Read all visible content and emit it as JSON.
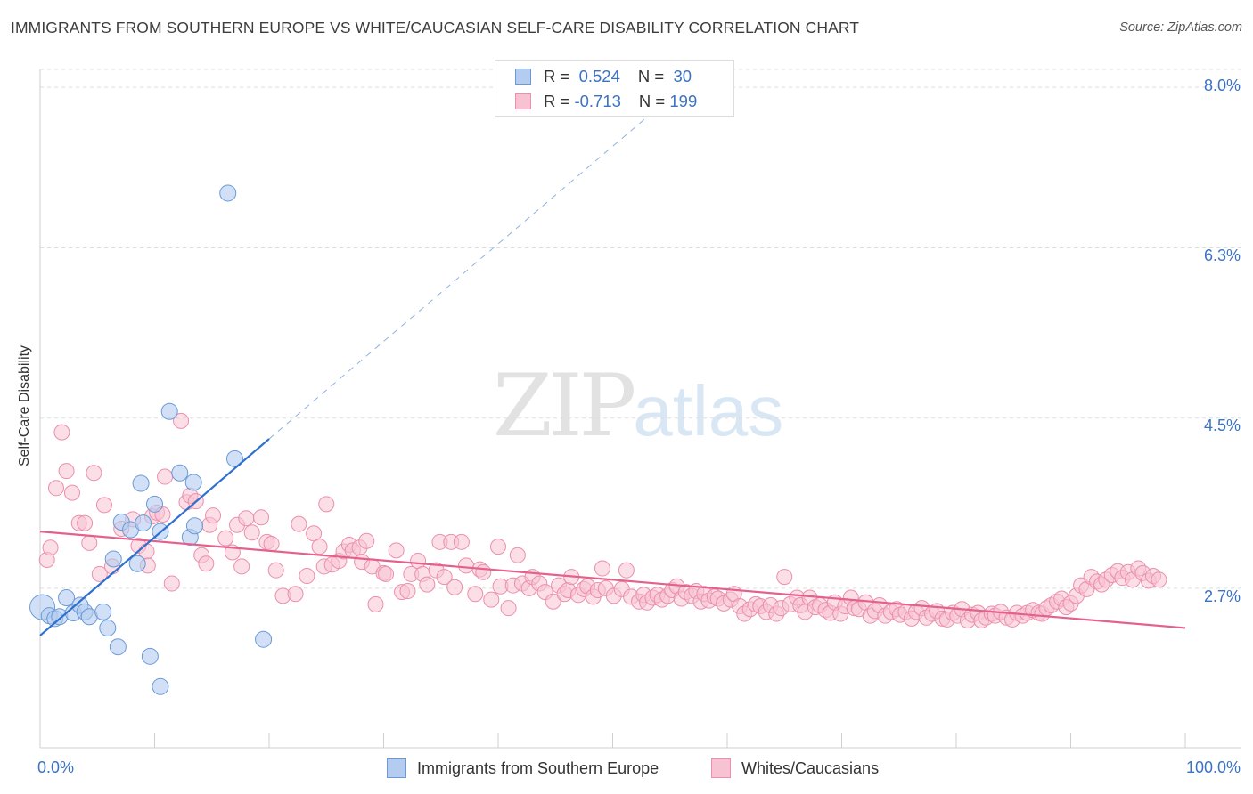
{
  "header": {
    "title": "IMMIGRANTS FROM SOUTHERN EUROPE VS WHITE/CAUCASIAN SELF-CARE DISABILITY CORRELATION CHART",
    "source": "Source: ZipAtlas.com"
  },
  "watermark": {
    "zip": "ZIP",
    "atlas": "atlas"
  },
  "legend_top": {
    "rows": [
      {
        "r_label": "R =",
        "r_value": "0.524",
        "n_label": "N =",
        "n_value": "30"
      },
      {
        "r_label": "R =",
        "r_value": "-0.713",
        "n_label": "N =",
        "n_value": "199"
      }
    ]
  },
  "colors": {
    "blue_fill": "#b3ccf0",
    "blue_stroke": "#6a9ad6",
    "blue_line": "#2f6fce",
    "pink_fill": "#f7c2d2",
    "pink_stroke": "#eb8fac",
    "pink_line": "#e4608d",
    "axis_text": "#3a72c4",
    "grid": "#dddddd"
  },
  "chart_data": {
    "type": "scatter",
    "title": "IMMIGRANTS FROM SOUTHERN EUROPE VS WHITE/CAUCASIAN SELF-CARE DISABILITY CORRELATION CHART",
    "xlabel": "",
    "ylabel": "Self-Care Disability",
    "xlim": [
      0,
      100
    ],
    "ylim": [
      1.35,
      8.3
    ],
    "x_tick_labels": [
      "0.0%",
      "100.0%"
    ],
    "y_ticks": [
      2.7,
      4.5,
      6.3,
      8.0
    ],
    "y_tick_labels": [
      "2.7%",
      "4.5%",
      "6.3%",
      "8.0%"
    ],
    "grid": true,
    "legend_position": "bottom",
    "series": [
      {
        "name": "Immigrants from Southern Europe",
        "r": 0.524,
        "n": 30,
        "trend": {
          "x0": 0,
          "y0": 2.2,
          "x1": 20,
          "y1": 4.28,
          "dash_to_x": 58,
          "dash_to_y": 8.2
        },
        "points": [
          [
            0.2,
            2.5,
            14
          ],
          [
            0.8,
            2.41,
            9
          ],
          [
            1.3,
            2.38,
            9
          ],
          [
            1.7,
            2.4,
            9
          ],
          [
            2.3,
            2.6,
            9
          ],
          [
            2.9,
            2.44,
            9
          ],
          [
            3.5,
            2.52,
            9
          ],
          [
            3.9,
            2.45,
            9
          ],
          [
            4.3,
            2.4,
            9
          ],
          [
            5.5,
            2.45,
            9
          ],
          [
            5.9,
            2.28,
            9
          ],
          [
            6.4,
            3.01,
            9
          ],
          [
            7.1,
            3.4,
            9
          ],
          [
            7.9,
            3.32,
            9
          ],
          [
            6.8,
            2.08,
            9
          ],
          [
            8.5,
            2.96,
            9
          ],
          [
            8.8,
            3.81,
            9
          ],
          [
            9.0,
            3.39,
            9
          ],
          [
            9.6,
            1.98,
            9
          ],
          [
            10.0,
            3.59,
            9
          ],
          [
            10.5,
            3.3,
            9
          ],
          [
            10.5,
            1.66,
            9
          ],
          [
            11.3,
            4.57,
            9
          ],
          [
            12.2,
            3.92,
            9
          ],
          [
            13.1,
            3.24,
            9
          ],
          [
            13.4,
            3.82,
            9
          ],
          [
            13.5,
            3.36,
            9
          ],
          [
            16.4,
            6.88,
            9
          ],
          [
            17.0,
            4.07,
            9
          ],
          [
            19.5,
            2.16,
            9
          ]
        ]
      },
      {
        "name": "Whites/Caucasians",
        "r": -0.713,
        "n": 199,
        "trend": {
          "x0": 0,
          "y0": 3.3,
          "x1": 100,
          "y1": 2.28
        },
        "points": [
          [
            0.6,
            3.0
          ],
          [
            0.9,
            3.13
          ],
          [
            1.4,
            3.76
          ],
          [
            1.9,
            4.35
          ],
          [
            2.3,
            3.94
          ],
          [
            2.8,
            3.71
          ],
          [
            3.4,
            3.39
          ],
          [
            3.9,
            3.39
          ],
          [
            4.3,
            3.18
          ],
          [
            4.7,
            3.92
          ],
          [
            5.2,
            2.85
          ],
          [
            5.6,
            3.58
          ],
          [
            6.3,
            2.93
          ],
          [
            7.1,
            3.33
          ],
          [
            8.1,
            3.43
          ],
          [
            8.6,
            3.15
          ],
          [
            9.3,
            3.09
          ],
          [
            9.4,
            2.94
          ],
          [
            9.8,
            3.46
          ],
          [
            10.2,
            3.5
          ],
          [
            10.7,
            3.48
          ],
          [
            10.9,
            3.88
          ],
          [
            11.5,
            2.75
          ],
          [
            12.3,
            4.47
          ],
          [
            12.8,
            3.61
          ],
          [
            13.1,
            3.68
          ],
          [
            13.6,
            3.62
          ],
          [
            14.1,
            3.05
          ],
          [
            14.5,
            2.96
          ],
          [
            14.8,
            3.37
          ],
          [
            15.1,
            3.47
          ],
          [
            16.2,
            3.23
          ],
          [
            16.8,
            3.08
          ],
          [
            17.2,
            3.37
          ],
          [
            17.6,
            2.93
          ],
          [
            18.0,
            3.44
          ],
          [
            18.5,
            3.29
          ],
          [
            19.3,
            3.45
          ],
          [
            19.8,
            3.19
          ],
          [
            20.2,
            3.17
          ],
          [
            20.6,
            2.89
          ],
          [
            21.2,
            2.62
          ],
          [
            22.3,
            2.64
          ],
          [
            22.6,
            3.38
          ],
          [
            23.3,
            2.83
          ],
          [
            23.9,
            3.28
          ],
          [
            24.4,
            3.14
          ],
          [
            24.8,
            2.93
          ],
          [
            25.0,
            3.59
          ],
          [
            25.5,
            2.95
          ],
          [
            26.1,
            2.99
          ],
          [
            26.5,
            3.09
          ],
          [
            27.0,
            3.16
          ],
          [
            27.3,
            3.1
          ],
          [
            27.9,
            3.13
          ],
          [
            28.1,
            2.98
          ],
          [
            28.5,
            3.2
          ],
          [
            29.0,
            2.93
          ],
          [
            29.3,
            2.53
          ],
          [
            30.0,
            2.86
          ],
          [
            30.2,
            2.85
          ],
          [
            31.1,
            3.1
          ],
          [
            31.6,
            2.66
          ],
          [
            32.1,
            2.67
          ],
          [
            32.4,
            2.85
          ],
          [
            33.0,
            2.99
          ],
          [
            33.4,
            2.85
          ],
          [
            33.8,
            2.74
          ],
          [
            34.6,
            2.89
          ],
          [
            34.9,
            3.19
          ],
          [
            35.3,
            2.82
          ],
          [
            35.9,
            3.19
          ],
          [
            36.2,
            2.71
          ],
          [
            36.8,
            3.19
          ],
          [
            37.2,
            2.94
          ],
          [
            38.0,
            2.64
          ],
          [
            38.4,
            2.9
          ],
          [
            38.7,
            2.87
          ],
          [
            39.4,
            2.58
          ],
          [
            40.0,
            3.14
          ],
          [
            40.2,
            2.72
          ],
          [
            40.9,
            2.49
          ],
          [
            41.3,
            2.73
          ],
          [
            41.7,
            3.05
          ],
          [
            42.1,
            2.75
          ],
          [
            42.7,
            2.7
          ],
          [
            43.0,
            2.82
          ],
          [
            43.6,
            2.75
          ],
          [
            44.1,
            2.66
          ],
          [
            44.8,
            2.56
          ],
          [
            45.3,
            2.73
          ],
          [
            45.8,
            2.64
          ],
          [
            46.1,
            2.68
          ],
          [
            46.4,
            2.82
          ],
          [
            47.0,
            2.63
          ],
          [
            47.5,
            2.69
          ],
          [
            47.8,
            2.72
          ],
          [
            48.3,
            2.61
          ],
          [
            48.7,
            2.68
          ],
          [
            49.1,
            2.91
          ],
          [
            49.4,
            2.7
          ],
          [
            50.1,
            2.62
          ],
          [
            50.8,
            2.69
          ],
          [
            51.2,
            2.89
          ],
          [
            51.6,
            2.61
          ],
          [
            52.3,
            2.56
          ],
          [
            52.7,
            2.63
          ],
          [
            53.0,
            2.55
          ],
          [
            53.5,
            2.6
          ],
          [
            53.9,
            2.63
          ],
          [
            54.3,
            2.58
          ],
          [
            54.8,
            2.62
          ],
          [
            55.2,
            2.68
          ],
          [
            55.6,
            2.72
          ],
          [
            56.0,
            2.59
          ],
          [
            56.4,
            2.66
          ],
          [
            56.9,
            2.62
          ],
          [
            57.3,
            2.67
          ],
          [
            57.7,
            2.56
          ],
          [
            58.0,
            2.64
          ],
          [
            58.4,
            2.57
          ],
          [
            58.9,
            2.61
          ],
          [
            59.2,
            2.59
          ],
          [
            59.7,
            2.54
          ],
          [
            60.3,
            2.58
          ],
          [
            60.6,
            2.64
          ],
          [
            61.1,
            2.51
          ],
          [
            61.5,
            2.43
          ],
          [
            62.0,
            2.48
          ],
          [
            62.5,
            2.53
          ],
          [
            62.9,
            2.51
          ],
          [
            63.4,
            2.45
          ],
          [
            63.8,
            2.52
          ],
          [
            64.3,
            2.43
          ],
          [
            64.7,
            2.49
          ],
          [
            65.0,
            2.82
          ],
          [
            65.5,
            2.53
          ],
          [
            66.1,
            2.6
          ],
          [
            66.4,
            2.52
          ],
          [
            66.8,
            2.45
          ],
          [
            67.2,
            2.6
          ],
          [
            67.7,
            2.5
          ],
          [
            68.1,
            2.52
          ],
          [
            68.6,
            2.47
          ],
          [
            69.0,
            2.44
          ],
          [
            69.4,
            2.55
          ],
          [
            69.9,
            2.43
          ],
          [
            70.3,
            2.51
          ],
          [
            70.8,
            2.6
          ],
          [
            71.1,
            2.49
          ],
          [
            71.5,
            2.48
          ],
          [
            72.1,
            2.55
          ],
          [
            72.5,
            2.41
          ],
          [
            72.9,
            2.46
          ],
          [
            73.3,
            2.52
          ],
          [
            73.8,
            2.41
          ],
          [
            74.3,
            2.45
          ],
          [
            74.8,
            2.48
          ],
          [
            75.1,
            2.42
          ],
          [
            75.6,
            2.45
          ],
          [
            76.1,
            2.38
          ],
          [
            76.5,
            2.45
          ],
          [
            77.0,
            2.49
          ],
          [
            77.4,
            2.39
          ],
          [
            77.9,
            2.43
          ],
          [
            78.3,
            2.46
          ],
          [
            78.8,
            2.38
          ],
          [
            79.2,
            2.37
          ],
          [
            79.7,
            2.44
          ],
          [
            80.1,
            2.41
          ],
          [
            80.5,
            2.48
          ],
          [
            81.0,
            2.36
          ],
          [
            81.4,
            2.42
          ],
          [
            81.9,
            2.44
          ],
          [
            82.2,
            2.36
          ],
          [
            82.6,
            2.39
          ],
          [
            83.1,
            2.43
          ],
          [
            83.4,
            2.41
          ],
          [
            83.9,
            2.45
          ],
          [
            84.4,
            2.39
          ],
          [
            84.9,
            2.37
          ],
          [
            85.3,
            2.44
          ],
          [
            85.8,
            2.41
          ],
          [
            86.2,
            2.44
          ],
          [
            86.7,
            2.47
          ],
          [
            87.2,
            2.44
          ],
          [
            87.5,
            2.43
          ],
          [
            87.9,
            2.49
          ],
          [
            88.3,
            2.52
          ],
          [
            88.8,
            2.56
          ],
          [
            89.2,
            2.59
          ],
          [
            89.6,
            2.5
          ],
          [
            90.0,
            2.54
          ],
          [
            90.5,
            2.62
          ],
          [
            90.9,
            2.73
          ],
          [
            91.4,
            2.69
          ],
          [
            91.8,
            2.82
          ],
          [
            92.3,
            2.77
          ],
          [
            92.7,
            2.74
          ],
          [
            93.1,
            2.79
          ],
          [
            93.6,
            2.84
          ],
          [
            94.1,
            2.88
          ],
          [
            94.5,
            2.81
          ],
          [
            95.0,
            2.87
          ],
          [
            95.4,
            2.79
          ],
          [
            95.9,
            2.91
          ],
          [
            96.3,
            2.86
          ],
          [
            96.8,
            2.78
          ],
          [
            97.2,
            2.83
          ],
          [
            97.7,
            2.79
          ]
        ]
      }
    ]
  },
  "legend_bottom": {
    "items": [
      {
        "label": "Immigrants from Southern Europe"
      },
      {
        "label": "Whites/Caucasians"
      }
    ]
  }
}
